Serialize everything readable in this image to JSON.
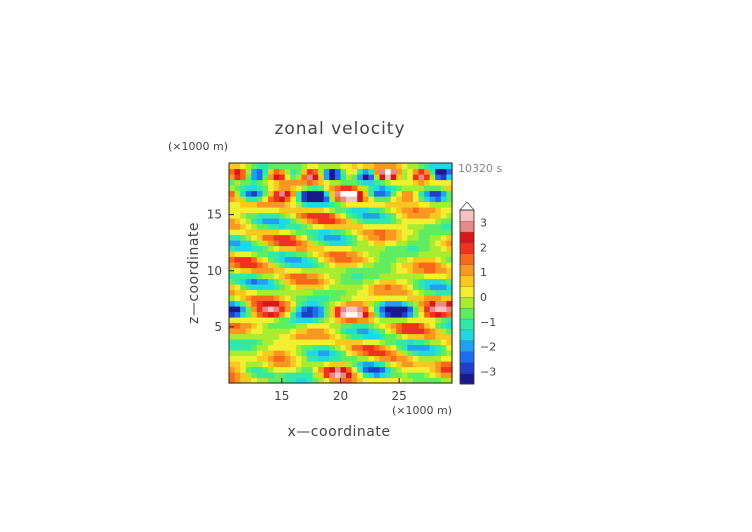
{
  "chart_data": {
    "type": "heatmap",
    "title": "zonal velocity",
    "xlabel": "x—coordinate",
    "ylabel": "z—coordinate",
    "x_unit": "(×1000 m)",
    "y_unit": "(×1000 m)",
    "time_label": "10320 s",
    "xlim": [
      10.5,
      29.5
    ],
    "ylim": [
      0,
      19.6
    ],
    "x_ticks": [
      15,
      20,
      25
    ],
    "y_ticks": [
      5,
      10,
      15
    ],
    "colorbar": {
      "labels": [
        "3",
        "2",
        "1",
        "0",
        "−1",
        "−2",
        "−3"
      ],
      "values": [
        3,
        2,
        1,
        0,
        -1,
        -2,
        -3
      ],
      "range": [
        -3.5,
        3.5
      ],
      "colors": [
        "#1a1a8c",
        "#1f3fc8",
        "#1e6cf0",
        "#20a0f0",
        "#20d8e0",
        "#30e8a8",
        "#60ec60",
        "#a8ec30",
        "#f0f030",
        "#f8c820",
        "#f89820",
        "#f86818",
        "#f03020",
        "#d81818",
        "#e88888",
        "#f4c0c0"
      ]
    },
    "field": {
      "nx": 40,
      "nz": 40,
      "note_components": [
        {
          "zc": 16.8,
          "amp": 3.2,
          "kx": 1.2
        },
        {
          "zc": 6.3,
          "amp": 2.8,
          "kx": 0.9
        },
        {
          "zc": 18.6,
          "amp": 2.5,
          "kx": 2.0
        }
      ]
    }
  }
}
